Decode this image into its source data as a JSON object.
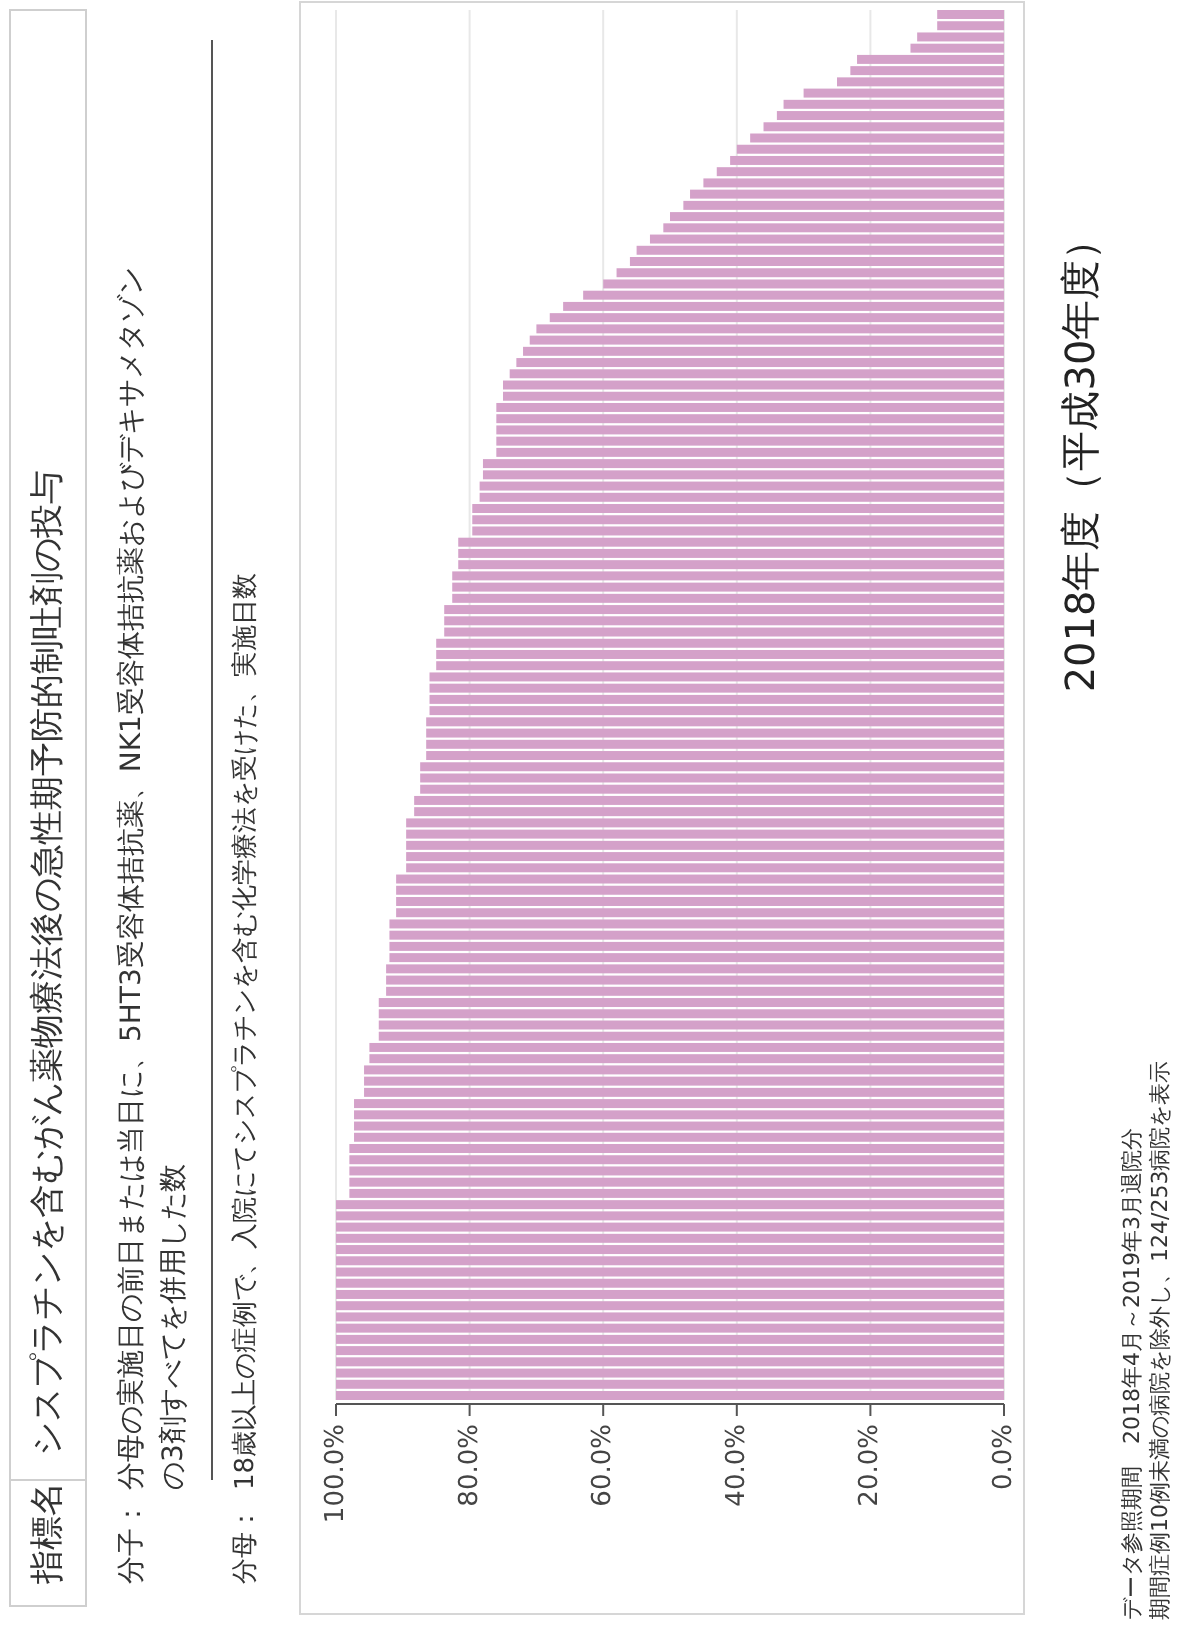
{
  "chart_data": {
    "type": "bar",
    "orientation": "horizontal",
    "title": "シスプラチンを含むがん薬物療法後の急性期予防的制吐剤の投与",
    "subtitle": "2018年度（平成30年度）",
    "annotations": [
      "指標名",
      "分子：",
      "分母の実施日の前日または当日に、5HT3受容体拮抗薬、NK1受容体拮抗薬およびデキサメタゾンの3剤すべてを併用した数",
      "分母：",
      "18歳以上の症例で、入院にてシスプラチンを含む化学療法を受けた、実施日数",
      "データ参照期間　2018年4月～2019年3月退院分",
      "期間症例10例未満の病院を除外し、124/253病院を表示"
    ],
    "categories": [
      null,
      null,
      null,
      null,
      null,
      null,
      null,
      null,
      null,
      null,
      null,
      null,
      null,
      null,
      null,
      null,
      null,
      null,
      null,
      null,
      null,
      null,
      null,
      null,
      null,
      null,
      null,
      null,
      null,
      null,
      null,
      null,
      null,
      null,
      null,
      null,
      null,
      null,
      null,
      null,
      null,
      null,
      null,
      null,
      null,
      null,
      null,
      null,
      null,
      null,
      null,
      null,
      null,
      null,
      null,
      null,
      null,
      null,
      null,
      null,
      null,
      null,
      null,
      null,
      null,
      null,
      null,
      null,
      null,
      null,
      null,
      null,
      null,
      null,
      null,
      null,
      null,
      null,
      null,
      null,
      null,
      null,
      null,
      null,
      null,
      null,
      null,
      null,
      null,
      null,
      null,
      null,
      null,
      null,
      null,
      null,
      null,
      null,
      null,
      null,
      null,
      null,
      null,
      null,
      null,
      null,
      null,
      null,
      null,
      null,
      null,
      null,
      null,
      null,
      null,
      null,
      null,
      null,
      null,
      null,
      null,
      null,
      null,
      null
    ],
    "values": [
      10,
      10,
      13,
      14,
      22,
      23,
      25,
      30,
      33,
      34,
      36,
      38,
      40,
      41,
      43,
      45,
      47,
      48,
      50,
      51,
      53,
      55,
      56,
      58,
      60,
      63,
      66,
      68,
      70,
      71,
      72,
      73,
      74,
      75,
      75,
      76,
      76,
      76,
      76,
      76,
      78,
      78,
      78.5,
      78.5,
      79.6,
      79.6,
      79.6,
      81.7,
      81.7,
      81.7,
      82.6,
      82.6,
      82.6,
      83.8,
      83.8,
      83.8,
      85,
      85,
      85,
      86,
      86,
      86,
      86,
      86.5,
      86.5,
      86.5,
      86.5,
      87.4,
      87.4,
      87.4,
      88.3,
      88.3,
      89.5,
      89.5,
      89.5,
      89.5,
      89.5,
      91,
      91,
      91,
      91,
      92,
      92,
      92,
      92,
      92.5,
      92.5,
      92.5,
      93.6,
      93.6,
      93.6,
      93.6,
      95,
      95,
      95.8,
      95.8,
      95.8,
      97.3,
      97.3,
      97.3,
      97.3,
      98,
      98,
      98,
      98,
      98,
      100,
      100,
      100,
      100,
      100,
      100,
      100,
      100,
      100,
      100,
      100,
      100,
      100,
      100,
      100,
      100,
      100,
      100
    ],
    "color": "#d4a1c9",
    "xlim": [
      100,
      0
    ],
    "xticks": [
      {
        "value": 100,
        "label": "100.0%"
      },
      {
        "value": 80,
        "label": "80.0%"
      },
      {
        "value": 60,
        "label": "60.0%"
      },
      {
        "value": 40,
        "label": "40.0%"
      },
      {
        "value": 20,
        "label": "20.0%"
      },
      {
        "value": 0,
        "label": "0.0%"
      }
    ],
    "grid": "x"
  }
}
